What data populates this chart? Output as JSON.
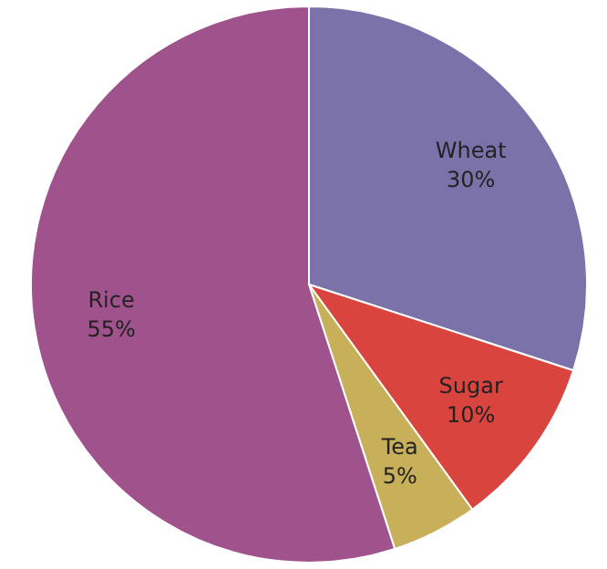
{
  "chart_data": {
    "type": "pie",
    "categories": [
      "Wheat",
      "Sugar",
      "Tea",
      "Rice"
    ],
    "values": [
      30,
      10,
      5,
      55
    ],
    "colors": [
      "#7b72aa",
      "#d9443f",
      "#c8b05a",
      "#a0528c"
    ],
    "value_labels": [
      "30%",
      "10%",
      "5%",
      "55%"
    ],
    "legend": false
  }
}
